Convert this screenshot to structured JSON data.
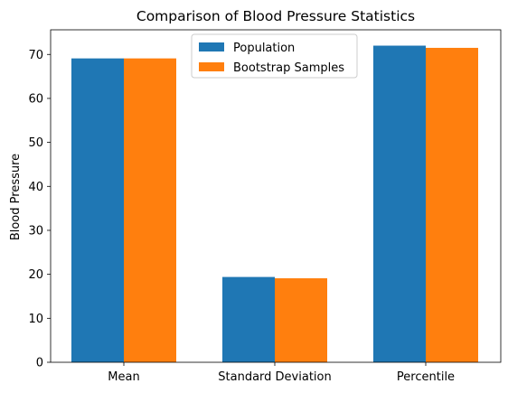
{
  "chart_data": {
    "type": "bar",
    "title": "Comparison of Blood Pressure Statistics",
    "xlabel": "",
    "ylabel": "Blood Pressure",
    "categories": [
      "Mean",
      "Standard Deviation",
      "Percentile"
    ],
    "series": [
      {
        "name": "Population",
        "color": "#1f77b4",
        "values": [
          69.1,
          19.4,
          72.0
        ]
      },
      {
        "name": "Bootstrap Samples",
        "color": "#ff7f0e",
        "values": [
          69.1,
          19.1,
          71.5
        ]
      }
    ],
    "ylim": [
      0,
      75.6
    ],
    "yticks": [
      0,
      10,
      20,
      30,
      40,
      50,
      60,
      70
    ],
    "grid": false,
    "legend_position": "top-center"
  }
}
